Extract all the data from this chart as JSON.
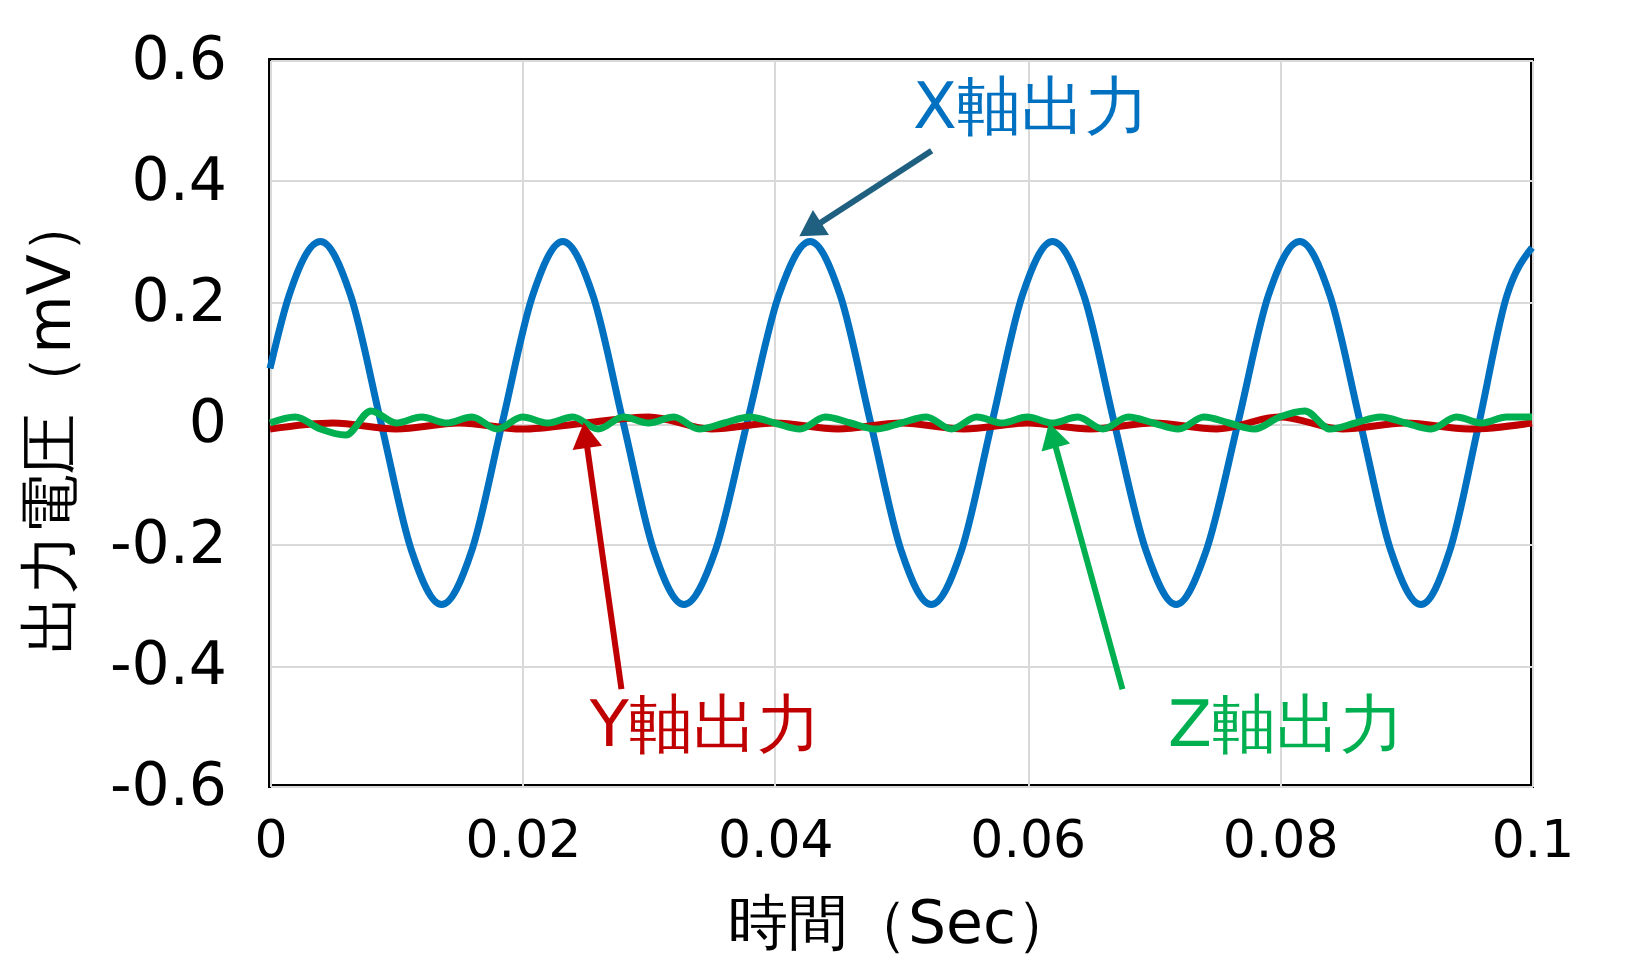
{
  "chart_data": {
    "type": "line",
    "xlabel": "時間（Sec）",
    "ylabel": "出力電圧（mV）",
    "xlim": [
      0,
      0.1
    ],
    "xticks": [
      0,
      0.02,
      0.04,
      0.06,
      0.08,
      0.1
    ],
    "ylim": [
      -0.6,
      0.6
    ],
    "yticks": [
      0.6,
      0.4,
      0.2,
      0,
      -0.2,
      -0.4,
      -0.6
    ],
    "grid": true,
    "legend": false,
    "line_style": "solid",
    "marker": "none",
    "series": [
      {
        "name": "X軸出力",
        "color": "#0070c0",
        "x": [
          0,
          0.0015,
          0.004,
          0.0064,
          0.0088,
          0.0112,
          0.0136,
          0.016,
          0.0184,
          0.0208,
          0.0232,
          0.0256,
          0.028,
          0.0304,
          0.0328,
          0.0353,
          0.0378,
          0.0403,
          0.0428,
          0.0452,
          0.0476,
          0.05,
          0.0524,
          0.0548,
          0.0572,
          0.0596,
          0.062,
          0.0645,
          0.0669,
          0.0694,
          0.0718,
          0.0742,
          0.0767,
          0.0791,
          0.0816,
          0.084,
          0.0864,
          0.0888,
          0.0912,
          0.0935,
          0.0958,
          0.098,
          0.1
        ],
        "values": [
          0.09,
          0.21,
          0.3,
          0.21,
          0,
          -0.21,
          -0.3,
          -0.21,
          0,
          0.21,
          0.3,
          0.21,
          0,
          -0.21,
          -0.3,
          -0.21,
          0,
          0.21,
          0.3,
          0.21,
          0,
          -0.21,
          -0.3,
          -0.21,
          0,
          0.21,
          0.3,
          0.21,
          0,
          -0.21,
          -0.3,
          -0.21,
          0,
          0.21,
          0.3,
          0.21,
          0,
          -0.21,
          -0.3,
          -0.21,
          0,
          0.21,
          0.29
        ]
      },
      {
        "name": "Y軸出力",
        "color": "#c00000",
        "x": [
          0,
          0.005,
          0.01,
          0.015,
          0.02,
          0.025,
          0.03,
          0.035,
          0.04,
          0.045,
          0.05,
          0.055,
          0.06,
          0.065,
          0.07,
          0.075,
          0.08,
          0.085,
          0.09,
          0.095,
          0.1
        ],
        "values": [
          -0.01,
          0,
          -0.01,
          0,
          -0.01,
          0,
          0.01,
          -0.01,
          0,
          -0.01,
          0,
          -0.01,
          0,
          -0.01,
          0,
          -0.01,
          0.01,
          -0.01,
          0,
          -0.01,
          0
        ]
      },
      {
        "name": "Z軸出力",
        "color": "#00b050",
        "x": [
          0,
          0.002,
          0.004,
          0.006,
          0.008,
          0.01,
          0.012,
          0.014,
          0.016,
          0.018,
          0.02,
          0.022,
          0.024,
          0.026,
          0.028,
          0.03,
          0.032,
          0.034,
          0.036,
          0.038,
          0.04,
          0.042,
          0.044,
          0.046,
          0.048,
          0.05,
          0.052,
          0.054,
          0.056,
          0.058,
          0.06,
          0.062,
          0.064,
          0.066,
          0.068,
          0.07,
          0.072,
          0.074,
          0.076,
          0.078,
          0.08,
          0.082,
          0.084,
          0.086,
          0.088,
          0.09,
          0.092,
          0.094,
          0.096,
          0.098,
          0.1
        ],
        "values": [
          0,
          0.01,
          -0.01,
          -0.02,
          0.02,
          0,
          0.01,
          0,
          0.01,
          -0.01,
          0.01,
          0,
          0.01,
          -0.01,
          0.01,
          0,
          0.01,
          -0.01,
          0,
          0.01,
          0,
          -0.01,
          0.01,
          0,
          -0.01,
          0,
          0.01,
          -0.01,
          0.01,
          0,
          0.01,
          0,
          0.01,
          -0.01,
          0.01,
          0,
          -0.01,
          0.01,
          0,
          -0.01,
          0.01,
          0.02,
          -0.01,
          0,
          0.01,
          0,
          -0.01,
          0.01,
          0,
          0.01,
          0.01
        ]
      }
    ]
  }
}
